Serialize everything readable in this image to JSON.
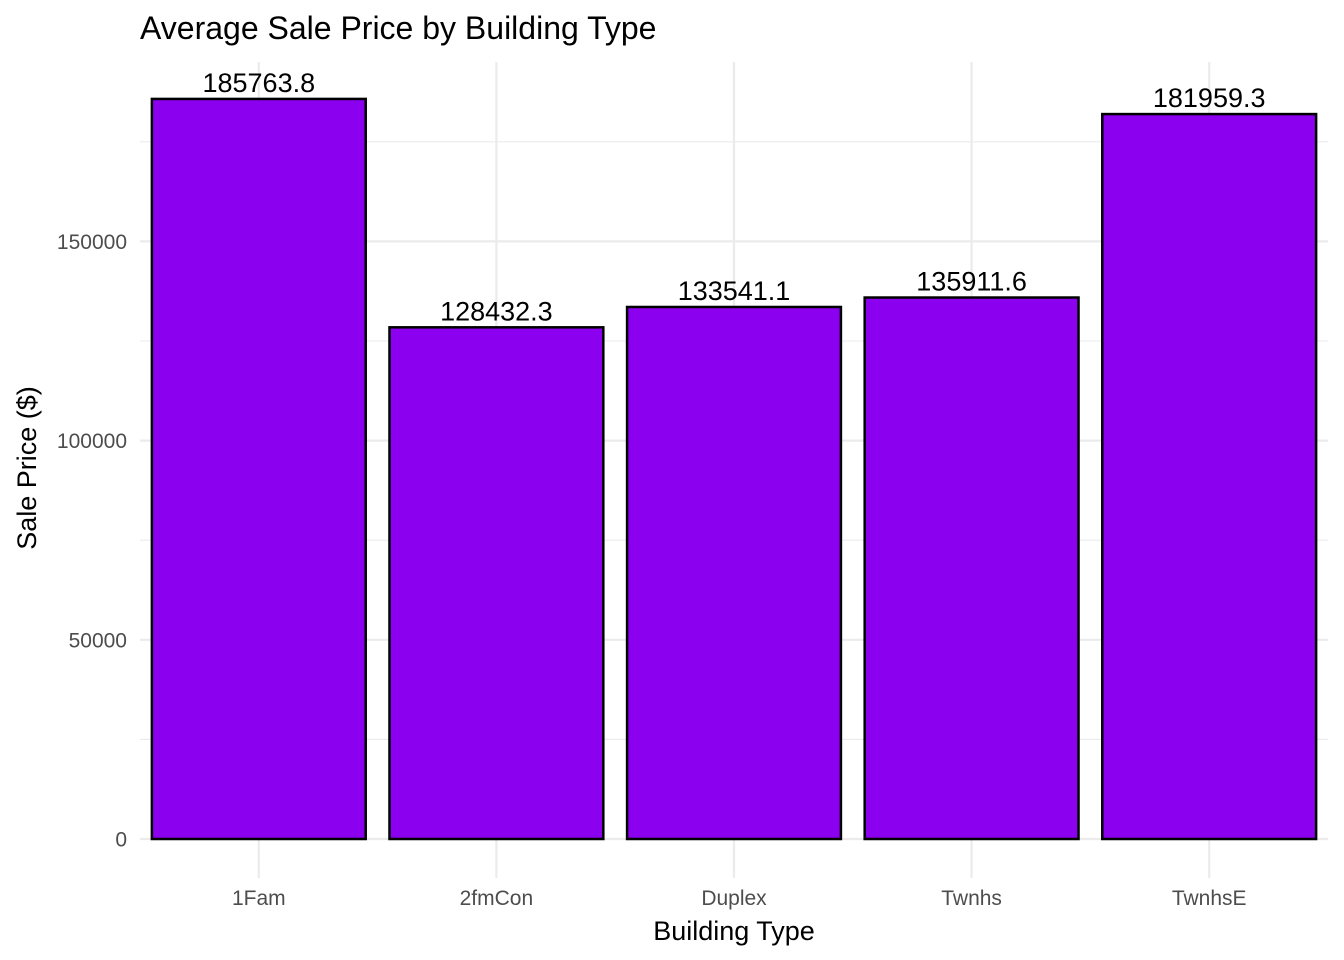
{
  "chart_data": {
    "type": "bar",
    "title": "Average Sale Price by Building Type",
    "xlabel": "Building Type",
    "ylabel": "Sale Price ($)",
    "categories": [
      "1Fam",
      "2fmCon",
      "Duplex",
      "Twnhs",
      "TwnhsE"
    ],
    "values": [
      185763.8,
      128432.3,
      133541.1,
      135911.6,
      181959.3
    ],
    "value_labels": [
      "185763.8",
      "128432.3",
      "133541.1",
      "135911.6",
      "181959.3"
    ],
    "ylim": [
      -8000,
      195000
    ],
    "yticks": [
      0,
      50000,
      100000,
      150000
    ],
    "ytick_labels": [
      "0",
      "50000",
      "100000",
      "150000"
    ],
    "grid": true,
    "legend": "none",
    "bar_fill": "#8B00EE",
    "bar_outline": "#000000"
  }
}
